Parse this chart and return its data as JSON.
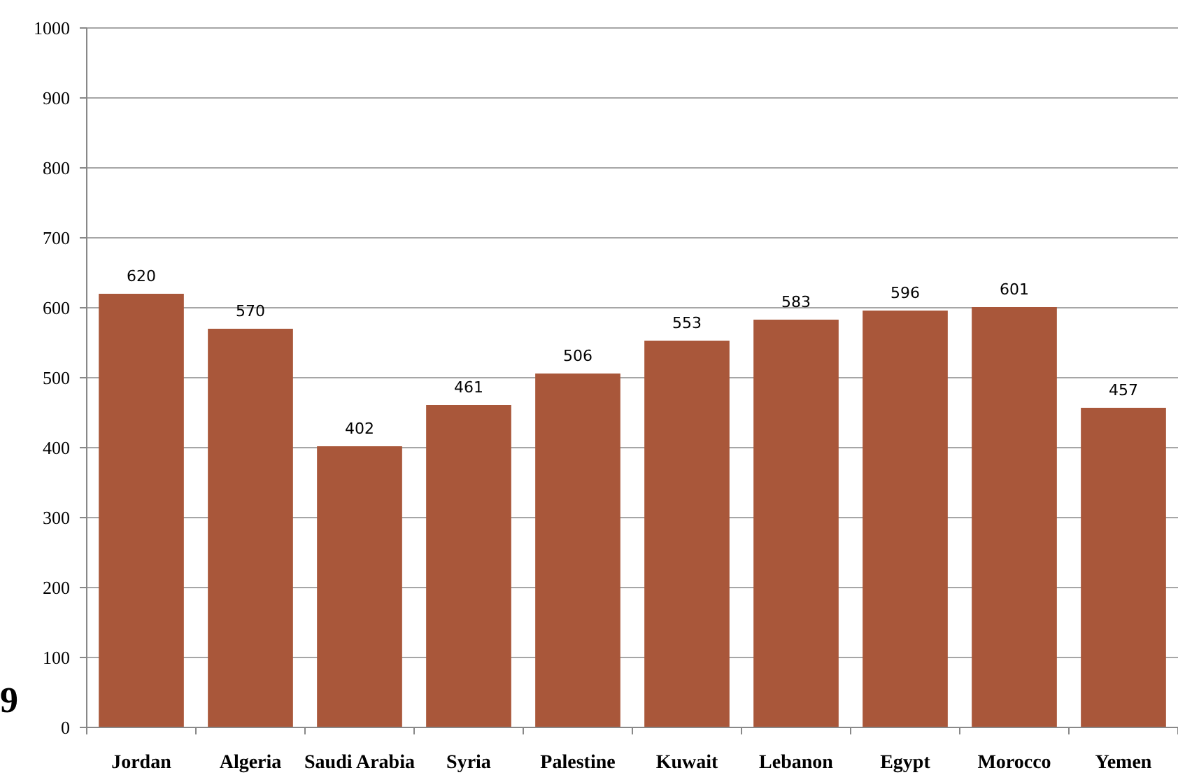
{
  "chart_data": {
    "type": "bar",
    "categories": [
      "Jordan",
      "Algeria",
      "Saudi Arabia",
      "Syria",
      "Palestine",
      "Kuwait",
      "Lebanon",
      "Egypt",
      "Morocco",
      "Yemen"
    ],
    "values": [
      620,
      570,
      402,
      461,
      506,
      553,
      583,
      596,
      601,
      457
    ],
    "color": "#a9573a",
    "ylim": [
      0,
      1000
    ],
    "yticks": [
      0,
      100,
      200,
      300,
      400,
      500,
      600,
      700,
      800,
      900,
      1000
    ],
    "grid": "y",
    "data_labels": true,
    "annotations": [
      "9"
    ]
  }
}
